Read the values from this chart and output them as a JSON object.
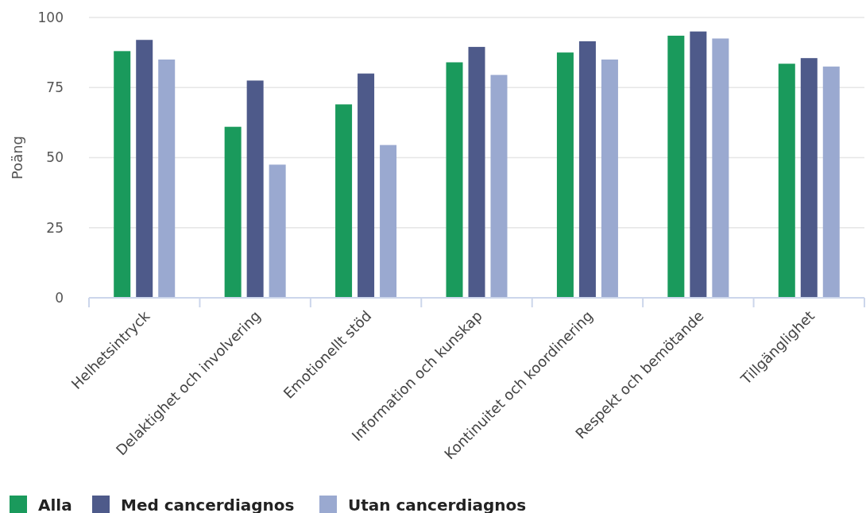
{
  "chart_data": {
    "type": "bar",
    "ylabel": "Poäng",
    "categories": [
      "Helhetsintryck",
      "Delaktighet och involvering",
      "Emotionellt stöd",
      "Information och kunskap",
      "Kontinuitet och koordinering",
      "Respekt och bemötande",
      "Tillgänglighet"
    ],
    "series": [
      {
        "name": "Alla",
        "color": "#1a9a5c",
        "values": [
          88,
          61,
          69,
          84,
          87.5,
          93.5,
          83.5
        ]
      },
      {
        "name": "Med cancerdiagnos",
        "color": "#4e5a8a",
        "values": [
          92,
          77.5,
          80,
          89.5,
          91.5,
          95,
          85.5
        ]
      },
      {
        "name": "Utan cancerdiagnos",
        "color": "#9aa9d0",
        "values": [
          85,
          47.5,
          54.5,
          79.5,
          85,
          92.5,
          82.5
        ]
      }
    ],
    "ylim": [
      0,
      100
    ],
    "yticks": [
      0,
      25,
      50,
      75,
      100
    ],
    "grid": "y",
    "legend": "bottom left"
  }
}
